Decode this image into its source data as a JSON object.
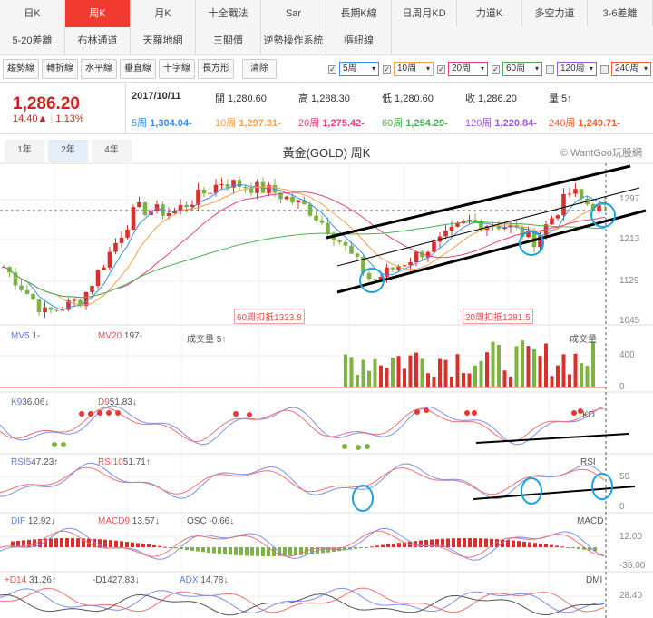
{
  "tabs_row1": [
    "日K",
    "周K",
    "月K",
    "十全戰法",
    "Sar",
    "長期K線",
    "日周月KD",
    "力道K",
    "多空力道",
    "3-6差離"
  ],
  "tabs_row2": [
    "5-20差離",
    "布林通道",
    "天羅地網",
    "三關價",
    "逆勢操作系統",
    "樞紐線"
  ],
  "active_tab": "周K",
  "tools": [
    "趨勢線",
    "轉折線",
    "水平線",
    "垂直線",
    "十字線",
    "長方形",
    "清除"
  ],
  "ma_selects": [
    {
      "label": "5周",
      "checked": true,
      "color": "#3a8ee6"
    },
    {
      "label": "10周",
      "checked": true,
      "color": "#f5a04a"
    },
    {
      "label": "20周",
      "checked": true,
      "color": "#e8407a"
    },
    {
      "label": "60周",
      "checked": true,
      "color": "#4caf50"
    },
    {
      "label": "120周",
      "checked": false,
      "color": "#9c5ad6"
    },
    {
      "label": "240周",
      "checked": false,
      "color": "#f06030"
    }
  ],
  "quote": {
    "price": "1,286.20",
    "change": "14.40▲",
    "pct": "1.13%",
    "date": "2017/10/11",
    "open": "開 1,280.60",
    "high": "高 1,288.30",
    "low": "低 1,280.60",
    "close": "收 1,286.20",
    "volume": "量 5↑"
  },
  "ma_values": [
    {
      "k": "5周",
      "v": "1,304.04-",
      "color": "#3a8ee6"
    },
    {
      "k": "10周",
      "v": "1,297.31-",
      "color": "#f5a04a"
    },
    {
      "k": "20周",
      "v": "1,275.42-",
      "color": "#e8407a"
    },
    {
      "k": "60周",
      "v": "1,254.29-",
      "color": "#4caf50"
    },
    {
      "k": "120周",
      "v": "1,220.84-",
      "color": "#9c5ad6"
    },
    {
      "k": "240周",
      "v": "1,249.71-",
      "color": "#f06030"
    }
  ],
  "ranges": [
    "1年",
    "2年",
    "4年"
  ],
  "active_range": "2年",
  "chart_title": "黃金(GOLD) 周K",
  "watermark": "© WantGoo玩股網",
  "price_axis": [
    "1297",
    "1213",
    "1129",
    "1045"
  ],
  "annotations": [
    "60周扣抵1323.8",
    "20周扣抵1281.5"
  ],
  "volume": {
    "mv5": "MV5",
    "mv5_v": "1-",
    "mv20": "MV20",
    "mv20_v": "197-",
    "vol": "成交量 5↑",
    "name": "成交量",
    "axis": [
      "400",
      "0"
    ]
  },
  "kd": {
    "k": "K9",
    "k_v": "36.06↓",
    "d": "D9",
    "d_v": "51.83↓",
    "name": "KD"
  },
  "rsi": {
    "r5": "RSI5",
    "r5_v": "47.23↑",
    "r10": "RSI10",
    "r10_v": "51.71↑",
    "name": "RSI",
    "axis": [
      "50",
      "0"
    ]
  },
  "macd": {
    "dif": "DIF",
    "dif_v": "12.92↓",
    "macd": "MACD9",
    "macd_v": "13.57↓",
    "osc": "OSC",
    "osc_v": "-0.66↓",
    "name": "MACD",
    "axis": [
      "12.00",
      "-36.00"
    ]
  },
  "dmi": {
    "pdi": "+D14",
    "pdi_v": "31.26↑",
    "mdi": "-D14",
    "mdi_v": "27.83↓",
    "adx": "ADX",
    "adx_v": "14.78↓",
    "name": "DMI",
    "axis": [
      "28.40"
    ]
  },
  "colors": {
    "up": "#d9302c",
    "down": "#7cb342",
    "accent": "#f23b30"
  }
}
